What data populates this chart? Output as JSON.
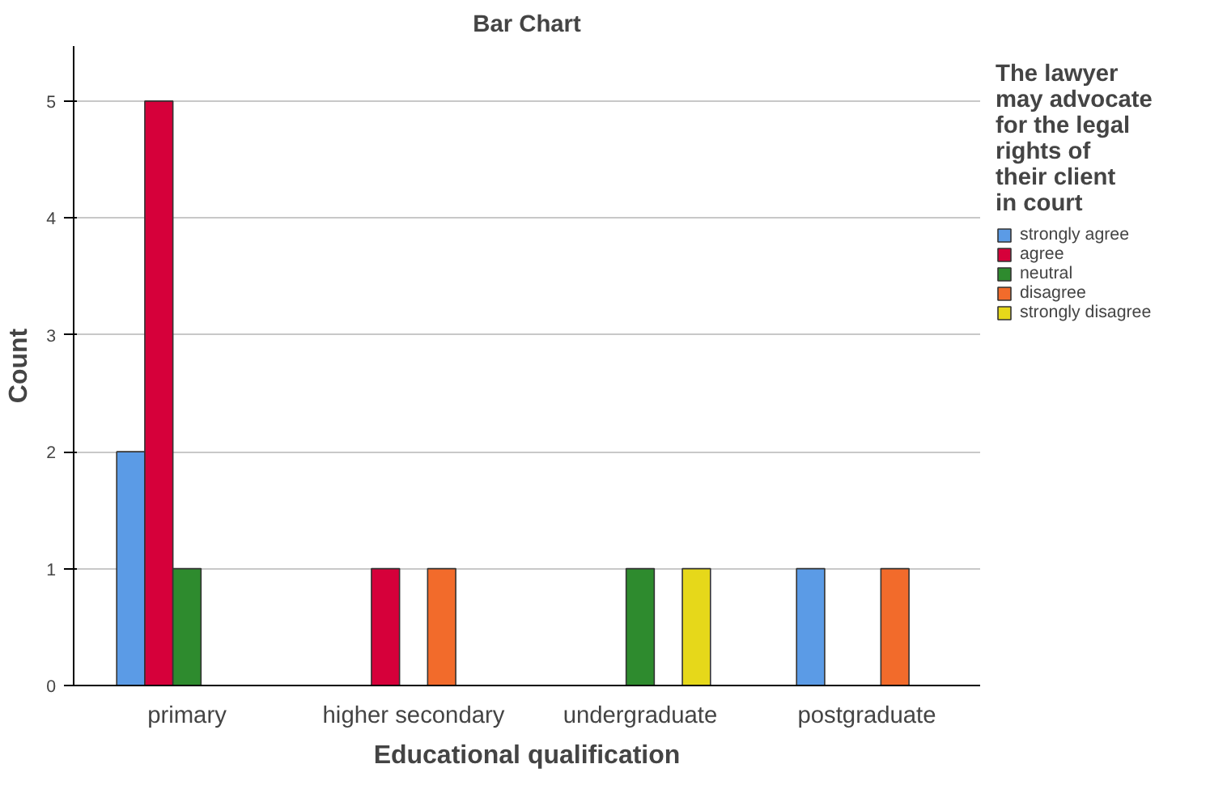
{
  "chart_data": {
    "type": "bar",
    "title": "Bar Chart",
    "xlabel": "Educational qualification",
    "ylabel": "Count",
    "legend_title": "The lawyer may advocate for the legal rights of their client in court",
    "categories": [
      "primary",
      "higher secondary",
      "undergraduate",
      "postgraduate"
    ],
    "series": [
      {
        "name": "strongly agree",
        "color": "#5b9be6",
        "values": [
          2,
          null,
          null,
          1
        ]
      },
      {
        "name": "agree",
        "color": "#d6003a",
        "values": [
          5,
          1,
          null,
          null
        ]
      },
      {
        "name": "neutral",
        "color": "#2e8b2e",
        "values": [
          1,
          null,
          1,
          null
        ]
      },
      {
        "name": "disagree",
        "color": "#f26b2b",
        "values": [
          null,
          1,
          null,
          1
        ]
      },
      {
        "name": "strongly disagree",
        "color": "#e6d81a",
        "values": [
          null,
          null,
          1,
          null
        ]
      }
    ],
    "ylim": [
      0,
      5.47
    ],
    "yticks": [
      0,
      1,
      2,
      3,
      4,
      5
    ],
    "grid": "y",
    "legend": "right"
  }
}
